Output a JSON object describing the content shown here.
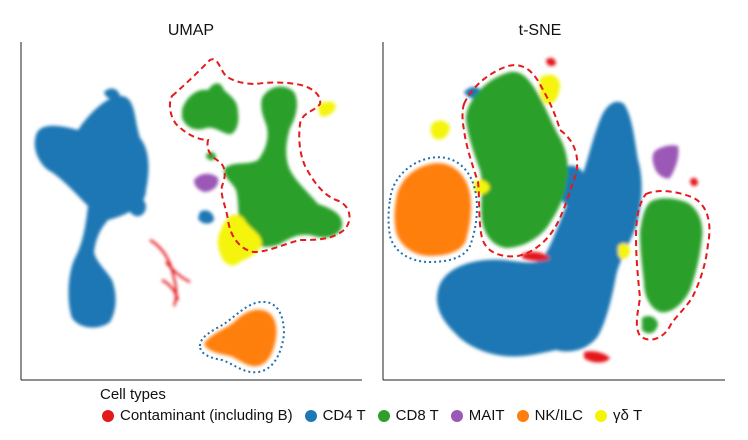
{
  "legend_title": "Cell types",
  "cell_types": [
    {
      "key": "contaminant",
      "label": "Contaminant (including B)",
      "color": "#e4171b"
    },
    {
      "key": "cd4",
      "label": "CD4 T",
      "color": "#1f77b4"
    },
    {
      "key": "cd8",
      "label": "CD8 T",
      "color": "#2ca02c"
    },
    {
      "key": "mait",
      "label": "MAIT",
      "color": "#9b59b6"
    },
    {
      "key": "nk",
      "label": "NK/ILC",
      "color": "#ff7f0e"
    },
    {
      "key": "gd",
      "label": "γδ T",
      "color": "#f4f40a"
    }
  ],
  "chart_data": [
    {
      "type": "scatter",
      "title": "UMAP",
      "xlabel": "",
      "ylabel": "",
      "grid": false,
      "axes": "left-bottom only, no ticks",
      "outlines": [
        {
          "group": "CD8 T",
          "style": "dashed",
          "color": "#e41a1c"
        },
        {
          "group": "NK/ILC",
          "style": "dotted",
          "color": "#1f6fb4"
        }
      ]
    },
    {
      "type": "scatter",
      "title": "t-SNE",
      "xlabel": "",
      "ylabel": "",
      "grid": false,
      "axes": "left-bottom only, no ticks",
      "outlines": [
        {
          "group": "CD8 T",
          "style": "dashed",
          "color": "#e41a1c"
        },
        {
          "group": "NK/ILC",
          "style": "dotted",
          "color": "#1f6fb4"
        }
      ]
    }
  ]
}
